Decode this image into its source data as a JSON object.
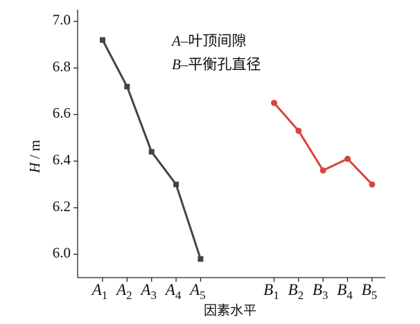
{
  "chart_data": {
    "type": "line",
    "categories": [
      "A1",
      "A2",
      "A3",
      "A4",
      "A5",
      null,
      null,
      "B1",
      "B2",
      "B3",
      "B4",
      "B5"
    ],
    "series": [
      {
        "color": "#444444",
        "marker": "square",
        "values": [
          6.92,
          6.72,
          6.44,
          6.3,
          5.98,
          null,
          null,
          null,
          null,
          null,
          null,
          null
        ]
      },
      {
        "color": "#d94340",
        "marker": "circle",
        "values": [
          null,
          null,
          null,
          null,
          null,
          null,
          null,
          6.65,
          6.53,
          6.36,
          6.41,
          6.3
        ]
      }
    ],
    "ylim": [
      5.9,
      7.05
    ],
    "yticks": [
      {
        "value": 6.0,
        "label": "6.0"
      },
      6.2,
      6.4,
      6.6,
      6.8,
      {
        "value": 7.0,
        "label": "7.0"
      }
    ],
    "ylabel": "H / m",
    "xlabel": "因素水平",
    "annotations": [
      "A–叶顶间隙",
      "B–平衡孔直径"
    ],
    "grid": false
  }
}
